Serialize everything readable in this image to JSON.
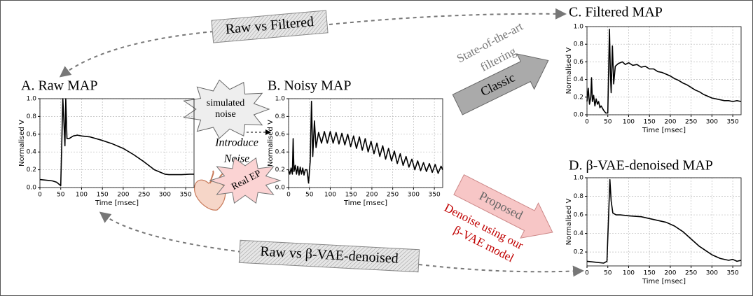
{
  "chart_data": [
    {
      "type": "line",
      "title": "A. Raw MAP",
      "xlabel": "Time [msec]",
      "ylabel": "Normalised V",
      "color": "#000000",
      "grid": true,
      "xlim": [
        0,
        370
      ],
      "xticks": [
        0,
        50,
        100,
        150,
        200,
        250,
        300,
        350
      ],
      "ylim": [
        0,
        1.0
      ],
      "yticks": [
        {
          "value": 0,
          "label": "0.0"
        },
        {
          "value": 0.2,
          "label": "0.2"
        },
        {
          "value": 0.4,
          "label": "0.4"
        },
        {
          "value": 0.6,
          "label": "0.6"
        },
        {
          "value": 0.8,
          "label": "0.8"
        },
        {
          "value": 1.0,
          "label": "1.0"
        }
      ],
      "x": [
        0,
        10,
        20,
        30,
        40,
        48,
        50,
        52,
        55,
        57,
        60,
        62,
        65,
        70,
        80,
        90,
        100,
        120,
        150,
        175,
        200,
        225,
        250,
        275,
        290,
        300,
        310,
        320,
        340,
        360,
        370
      ],
      "values": [
        0.09,
        0.085,
        0.08,
        0.075,
        0.06,
        0.03,
        0.02,
        0.4,
        1.0,
        0.8,
        0.47,
        1.0,
        0.55,
        0.55,
        0.58,
        0.59,
        0.58,
        0.57,
        0.53,
        0.49,
        0.44,
        0.37,
        0.29,
        0.2,
        0.17,
        0.15,
        0.145,
        0.145,
        0.145,
        0.15,
        0.15
      ]
    },
    {
      "type": "line",
      "title": "B. Noisy MAP",
      "xlabel": "Time [msec]",
      "ylabel": "Normalised V",
      "color": "#000000",
      "grid": true,
      "xlim": [
        0,
        370
      ],
      "xticks": [
        0,
        50,
        100,
        150,
        200,
        250,
        300,
        350
      ],
      "ylim": [
        0,
        1.0
      ],
      "yticks": [
        {
          "value": 0,
          "label": "0.0"
        },
        {
          "value": 0.2,
          "label": "0.2"
        },
        {
          "value": 0.4,
          "label": "0.4"
        },
        {
          "value": 0.6,
          "label": "0.6"
        },
        {
          "value": 0.8,
          "label": "0.8"
        },
        {
          "value": 1.0,
          "label": "1.0"
        }
      ],
      "x": [
        0,
        3,
        6,
        9,
        11,
        13,
        16,
        19,
        22,
        25,
        28,
        31,
        34,
        37,
        40,
        44,
        48,
        52,
        55,
        58,
        62,
        66,
        72,
        79,
        86,
        93,
        100,
        107,
        114,
        121,
        128,
        135,
        142,
        149,
        156,
        163,
        170,
        177,
        184,
        191,
        198,
        205,
        212,
        219,
        226,
        233,
        240,
        247,
        254,
        261,
        268,
        275,
        282,
        289,
        296,
        303,
        310,
        317,
        324,
        331,
        338,
        345,
        352,
        359,
        366,
        370
      ],
      "values": [
        0.2,
        0.15,
        0.22,
        0.15,
        0.55,
        0.18,
        0.25,
        0.15,
        0.24,
        0.14,
        0.23,
        0.15,
        0.22,
        0.14,
        0.2,
        0.2,
        0.05,
        0.3,
        0.97,
        0.35,
        0.75,
        0.45,
        0.62,
        0.5,
        0.63,
        0.5,
        0.63,
        0.5,
        0.62,
        0.49,
        0.61,
        0.48,
        0.6,
        0.46,
        0.58,
        0.44,
        0.57,
        0.42,
        0.55,
        0.4,
        0.52,
        0.38,
        0.5,
        0.35,
        0.47,
        0.32,
        0.44,
        0.3,
        0.41,
        0.27,
        0.38,
        0.25,
        0.35,
        0.23,
        0.32,
        0.2,
        0.3,
        0.19,
        0.28,
        0.18,
        0.27,
        0.17,
        0.26,
        0.16,
        0.24,
        0.2
      ]
    },
    {
      "type": "line",
      "title": "C. Filtered MAP",
      "xlabel": "Time [msec]",
      "ylabel": "Normalised V",
      "color": "#000000",
      "grid": true,
      "xlim": [
        0,
        370
      ],
      "xticks": [
        0,
        50,
        100,
        150,
        200,
        250,
        300,
        350
      ],
      "ylim": [
        0,
        1.0
      ],
      "yticks": [
        {
          "value": 0,
          "label": "0.0"
        },
        {
          "value": 0.2,
          "label": "0.2"
        },
        {
          "value": 0.4,
          "label": "0.4"
        },
        {
          "value": 0.6,
          "label": "0.6"
        },
        {
          "value": 0.8,
          "label": "0.8"
        },
        {
          "value": 1.0,
          "label": "1.0"
        }
      ],
      "x": [
        0,
        3,
        6,
        9,
        11,
        13,
        16,
        19,
        22,
        25,
        28,
        31,
        34,
        40,
        45,
        50,
        52,
        54,
        56,
        58,
        61,
        64,
        68,
        75,
        85,
        92,
        100,
        110,
        120,
        130,
        140,
        150,
        160,
        170,
        180,
        190,
        200,
        210,
        220,
        230,
        240,
        250,
        260,
        270,
        280,
        290,
        300,
        310,
        320,
        330,
        340,
        350,
        360,
        370
      ],
      "values": [
        0.15,
        0.3,
        0.12,
        0.2,
        0.42,
        0.15,
        0.22,
        0.1,
        0.18,
        0.12,
        0.15,
        0.08,
        0.1,
        0.05,
        0.02,
        0.02,
        0.5,
        0.97,
        0.5,
        0.25,
        0.78,
        0.35,
        0.55,
        0.58,
        0.6,
        0.57,
        0.59,
        0.56,
        0.57,
        0.54,
        0.55,
        0.52,
        0.52,
        0.49,
        0.48,
        0.46,
        0.44,
        0.41,
        0.39,
        0.36,
        0.34,
        0.31,
        0.28,
        0.26,
        0.23,
        0.21,
        0.19,
        0.18,
        0.17,
        0.16,
        0.16,
        0.15,
        0.16,
        0.15
      ]
    },
    {
      "type": "line",
      "title": "D. β-VAE-denoised MAP",
      "xlabel": "Time [msec]",
      "ylabel": "Normalised V",
      "color": "#000000",
      "grid": true,
      "xlim": [
        0,
        370
      ],
      "xticks": [
        0,
        50,
        100,
        150,
        200,
        250,
        300,
        350
      ],
      "ylim": [
        0.05,
        1.0
      ],
      "yticks": [
        0.2,
        0.4,
        0.6,
        0.8,
        {
          "value": 1.0,
          "label": "1.0"
        }
      ],
      "x": [
        0,
        20,
        40,
        48,
        52,
        55,
        58,
        62,
        70,
        80,
        100,
        130,
        160,
        190,
        210,
        230,
        250,
        270,
        290,
        300,
        320,
        340,
        350,
        360,
        370
      ],
      "values": [
        0.1,
        0.09,
        0.08,
        0.1,
        0.6,
        0.98,
        0.75,
        0.62,
        0.6,
        0.6,
        0.59,
        0.58,
        0.55,
        0.52,
        0.48,
        0.42,
        0.34,
        0.26,
        0.2,
        0.17,
        0.13,
        0.11,
        0.12,
        0.1,
        0.11
      ]
    }
  ],
  "annotations": {
    "raw_vs_filtered": "Raw vs Filtered",
    "raw_vs_vae": "Raw vs β-VAE-denoised",
    "simulated_noise": [
      "simulated",
      "noise"
    ],
    "introduce_noise": [
      "Introduce",
      "Noise"
    ],
    "real_ep": "Real EP",
    "state_of_the_art": [
      "State-of-the-art",
      "filtering"
    ],
    "classic": "Classic",
    "proposed": "Proposed",
    "denoise": [
      "Denoise using our",
      "β-VAE model"
    ]
  }
}
